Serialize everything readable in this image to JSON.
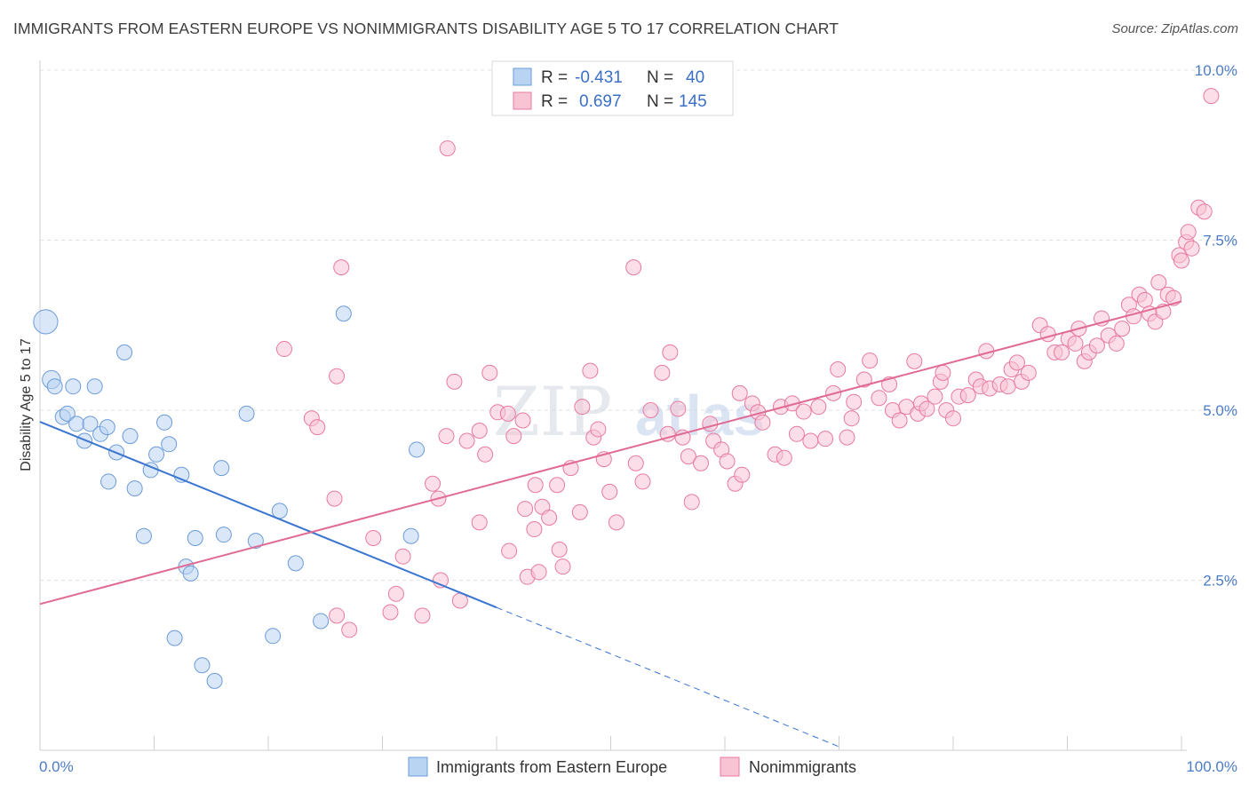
{
  "header": {
    "title": "IMMIGRANTS FROM EASTERN EUROPE VS NONIMMIGRANTS DISABILITY AGE 5 TO 17 CORRELATION CHART",
    "source": "Source: ZipAtlas.com"
  },
  "watermark": {
    "zip": "ZIP",
    "atlas": "atlas"
  },
  "legend": {
    "rows": [
      {
        "r_label": "R =",
        "r_value": "-0.431",
        "n_label": "N =",
        "n_value": "40",
        "color": "#a8c8f0"
      },
      {
        "r_label": "R =",
        "r_value": "0.697",
        "n_label": "N =",
        "n_value": "145",
        "color": "#f5b6c8"
      }
    ]
  },
  "chart_data": {
    "type": "scatter",
    "title": "IMMIGRANTS FROM EASTERN EUROPE VS NONIMMIGRANTS DISABILITY AGE 5 TO 17 CORRELATION CHART",
    "xlabel": "",
    "ylabel": "Disability Age 5 to 17",
    "xlim": [
      0,
      100
    ],
    "ylim": [
      0,
      10.5
    ],
    "x_tick_labels": [
      "0.0%",
      "100.0%"
    ],
    "y_ticks": [
      2.5,
      5.0,
      7.5,
      10.0
    ],
    "y_tick_labels": [
      "2.5%",
      "5.0%",
      "7.5%",
      "10.0%"
    ],
    "grid": true,
    "legend_position": "top-center",
    "series": [
      {
        "name": "Immigrants from Eastern Europe",
        "color": "#6b9bd8",
        "fill": "#b9d4f3",
        "trend": {
          "x0": 0,
          "y0": 4.83,
          "x1": 40,
          "y1": 2.1,
          "dash_to_x": 70
        },
        "points": [
          [
            0.5,
            6.3,
            1.6
          ],
          [
            1.0,
            5.45,
            1.2
          ],
          [
            1.3,
            5.35,
            1
          ],
          [
            2.0,
            4.9,
            1
          ],
          [
            2.4,
            4.95,
            1
          ],
          [
            2.9,
            5.35,
            1
          ],
          [
            3.2,
            4.8,
            1
          ],
          [
            3.9,
            4.55,
            1
          ],
          [
            4.4,
            4.8,
            1
          ],
          [
            4.8,
            5.35,
            1
          ],
          [
            5.3,
            4.65,
            1
          ],
          [
            5.9,
            4.75,
            1
          ],
          [
            6.0,
            3.95,
            1
          ],
          [
            6.7,
            4.38,
            1
          ],
          [
            7.4,
            5.85,
            1
          ],
          [
            7.9,
            4.62,
            1
          ],
          [
            8.3,
            3.85,
            1
          ],
          [
            9.1,
            3.15,
            1
          ],
          [
            9.7,
            4.12,
            1
          ],
          [
            10.2,
            4.35,
            1
          ],
          [
            10.9,
            4.82,
            1
          ],
          [
            11.3,
            4.5,
            1
          ],
          [
            11.8,
            1.65,
            1
          ],
          [
            12.4,
            4.05,
            1
          ],
          [
            12.8,
            2.7,
            1
          ],
          [
            13.2,
            2.6,
            1
          ],
          [
            13.6,
            3.12,
            1
          ],
          [
            14.2,
            1.25,
            1
          ],
          [
            15.3,
            1.02,
            1
          ],
          [
            15.9,
            4.15,
            1
          ],
          [
            16.1,
            3.17,
            1
          ],
          [
            18.1,
            4.95,
            1
          ],
          [
            18.9,
            3.08,
            1
          ],
          [
            20.4,
            1.68,
            1
          ],
          [
            21.0,
            3.52,
            1
          ],
          [
            22.4,
            2.75,
            1
          ],
          [
            24.6,
            1.9,
            1
          ],
          [
            26.6,
            6.42,
            1
          ],
          [
            32.5,
            3.15,
            1
          ],
          [
            33.0,
            4.42,
            1
          ]
        ]
      },
      {
        "name": "Nonimmigrants",
        "color": "#e87aa0",
        "fill": "#f8c3d3",
        "trend": {
          "x0": 0,
          "y0": 2.15,
          "x1": 100,
          "y1": 6.6
        },
        "points": [
          [
            21.4,
            5.9
          ],
          [
            26.4,
            7.1
          ],
          [
            25.8,
            3.7
          ],
          [
            26.0,
            1.98
          ],
          [
            27.1,
            1.77
          ],
          [
            29.2,
            3.12
          ],
          [
            30.7,
            2.03
          ],
          [
            31.2,
            2.3
          ],
          [
            31.8,
            2.85
          ],
          [
            33.5,
            1.98
          ],
          [
            23.8,
            4.88
          ],
          [
            24.3,
            4.75
          ],
          [
            26.0,
            5.5
          ],
          [
            34.4,
            3.92
          ],
          [
            34.9,
            3.7
          ],
          [
            35.1,
            2.5
          ],
          [
            36.3,
            5.42
          ],
          [
            36.8,
            2.2
          ],
          [
            35.6,
            4.62
          ],
          [
            37.4,
            4.55
          ],
          [
            38.5,
            4.7
          ],
          [
            38.5,
            3.35
          ],
          [
            39.0,
            4.35
          ],
          [
            39.4,
            5.55
          ],
          [
            40.1,
            4.97
          ],
          [
            41.0,
            4.95
          ],
          [
            41.5,
            4.62
          ],
          [
            41.1,
            2.93
          ],
          [
            42.3,
            4.85
          ],
          [
            42.5,
            3.55
          ],
          [
            42.7,
            2.55
          ],
          [
            43.3,
            3.25
          ],
          [
            43.4,
            3.9
          ],
          [
            43.7,
            2.62
          ],
          [
            44.0,
            3.58
          ],
          [
            44.6,
            3.42
          ],
          [
            45.3,
            3.9
          ],
          [
            45.5,
            2.95
          ],
          [
            45.8,
            2.7
          ],
          [
            46.5,
            4.15
          ],
          [
            47.3,
            3.5
          ],
          [
            48.2,
            5.58
          ],
          [
            48.5,
            4.6
          ],
          [
            48.9,
            4.72
          ],
          [
            49.4,
            4.28
          ],
          [
            49.9,
            3.8
          ],
          [
            50.5,
            3.35
          ],
          [
            52.2,
            4.22
          ],
          [
            52.8,
            3.95
          ],
          [
            53.5,
            5.0
          ],
          [
            54.5,
            5.55
          ],
          [
            55.0,
            4.65
          ],
          [
            55.2,
            5.85
          ],
          [
            55.9,
            5.02
          ],
          [
            56.3,
            4.6
          ],
          [
            56.8,
            4.32
          ],
          [
            57.1,
            3.65
          ],
          [
            57.9,
            4.22
          ],
          [
            58.7,
            4.8
          ],
          [
            59.0,
            4.55
          ],
          [
            59.7,
            4.42
          ],
          [
            60.2,
            4.25
          ],
          [
            60.9,
            3.92
          ],
          [
            61.3,
            5.25
          ],
          [
            61.5,
            4.05
          ],
          [
            62.4,
            5.1
          ],
          [
            62.9,
            4.97
          ],
          [
            63.3,
            4.82
          ],
          [
            64.4,
            4.35
          ],
          [
            64.9,
            5.05
          ],
          [
            65.2,
            4.3
          ],
          [
            65.9,
            5.1
          ],
          [
            66.3,
            4.65
          ],
          [
            66.9,
            4.98
          ],
          [
            67.5,
            4.55
          ],
          [
            68.2,
            5.05
          ],
          [
            68.8,
            4.58
          ],
          [
            69.5,
            5.25
          ],
          [
            69.9,
            5.6
          ],
          [
            70.7,
            4.6
          ],
          [
            71.1,
            4.88
          ],
          [
            71.3,
            5.12
          ],
          [
            72.2,
            5.45
          ],
          [
            72.7,
            5.73
          ],
          [
            73.5,
            5.18
          ],
          [
            74.4,
            5.38
          ],
          [
            74.7,
            5.0
          ],
          [
            75.3,
            4.85
          ],
          [
            75.9,
            5.05
          ],
          [
            76.6,
            5.72
          ],
          [
            76.9,
            4.95
          ],
          [
            77.2,
            5.1
          ],
          [
            77.7,
            5.02
          ],
          [
            78.4,
            5.2
          ],
          [
            78.9,
            5.42
          ],
          [
            79.1,
            5.55
          ],
          [
            79.4,
            5.0
          ],
          [
            80.0,
            4.88
          ],
          [
            80.5,
            5.2
          ],
          [
            81.3,
            5.22
          ],
          [
            82.0,
            5.45
          ],
          [
            82.4,
            5.35
          ],
          [
            82.9,
            5.87
          ],
          [
            83.2,
            5.32
          ],
          [
            84.1,
            5.38
          ],
          [
            84.8,
            5.35
          ],
          [
            85.1,
            5.6
          ],
          [
            85.6,
            5.7
          ],
          [
            86.0,
            5.42
          ],
          [
            86.6,
            5.55
          ],
          [
            87.6,
            6.25
          ],
          [
            88.3,
            6.12
          ],
          [
            88.9,
            5.85
          ],
          [
            89.5,
            5.85
          ],
          [
            90.1,
            6.05
          ],
          [
            90.7,
            5.98
          ],
          [
            91.0,
            6.2
          ],
          [
            91.5,
            5.72
          ],
          [
            91.9,
            5.85
          ],
          [
            92.6,
            5.95
          ],
          [
            93.0,
            6.35
          ],
          [
            93.6,
            6.1
          ],
          [
            94.3,
            5.98
          ],
          [
            94.8,
            6.2
          ],
          [
            95.4,
            6.55
          ],
          [
            95.8,
            6.38
          ],
          [
            96.3,
            6.7
          ],
          [
            96.8,
            6.62
          ],
          [
            97.2,
            6.42
          ],
          [
            97.7,
            6.3
          ],
          [
            98.0,
            6.88
          ],
          [
            98.4,
            6.45
          ],
          [
            98.8,
            6.7
          ],
          [
            99.3,
            6.65
          ],
          [
            99.8,
            7.28
          ],
          [
            100.0,
            7.2
          ],
          [
            100.4,
            7.47
          ],
          [
            100.6,
            7.62
          ],
          [
            100.9,
            7.38
          ],
          [
            101.5,
            7.98
          ],
          [
            102.0,
            7.92
          ],
          [
            102.6,
            9.62
          ],
          [
            35.7,
            8.85
          ],
          [
            52.0,
            7.1
          ],
          [
            47.5,
            5.05
          ]
        ]
      }
    ]
  },
  "bottom_legend": {
    "items": [
      {
        "label": "Immigrants from Eastern Europe",
        "color": "#b9d4f3",
        "stroke": "#6b9bd8"
      },
      {
        "label": "Nonimmigrants",
        "color": "#f8c3d3",
        "stroke": "#e87aa0"
      }
    ]
  }
}
